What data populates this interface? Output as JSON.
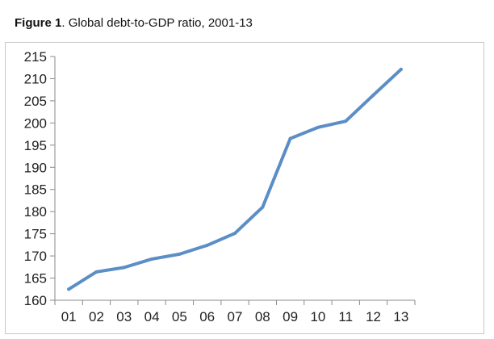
{
  "figure": {
    "label": "Figure 1",
    "caption": ". Global debt-to-GDP ratio, 2001-13"
  },
  "chart_data": {
    "type": "line",
    "title": "Global debt-to-GDP ratio, 2001-13",
    "xlabel": "",
    "ylabel": "",
    "categories": [
      "01",
      "02",
      "03",
      "04",
      "05",
      "06",
      "07",
      "08",
      "09",
      "10",
      "11",
      "12",
      "13"
    ],
    "series": [
      {
        "values": [
          162.5,
          166.4,
          167.4,
          169.3,
          170.4,
          172.4,
          175.1,
          181.0,
          196.5,
          199.0,
          200.4,
          206.3,
          212.1
        ],
        "color": "#5b8ec6"
      }
    ],
    "ylim": [
      160,
      215
    ],
    "yticks": [
      160,
      165,
      170,
      175,
      180,
      185,
      190,
      195,
      200,
      205,
      210,
      215
    ],
    "grid": false,
    "legend": "none"
  }
}
